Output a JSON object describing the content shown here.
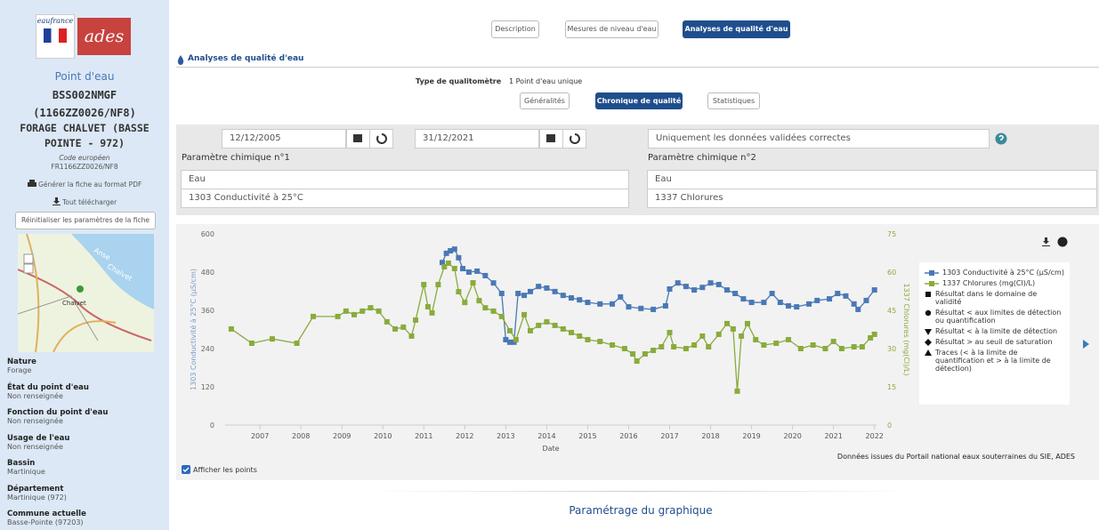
{
  "sidebar": {
    "logo_1": "eaufrance",
    "logo_2": "ades",
    "heading": "Point d'eau",
    "code_bss": "BSS002NMGF",
    "old_code": "(1166ZZ0026/NF8)",
    "name": "FORAGE CHALVET (BASSE POINTE - 972)",
    "eu_code_label": "Code européen",
    "eu_code": "FR1166ZZ0026/NF8",
    "pdf_link": "Générer la fiche au format PDF",
    "download_link": "Tout télécharger",
    "reset_button": "Réinitialiser les paramètres de la fiche",
    "map_labels": [
      "Anse",
      "Chalvet",
      "Chalvet"
    ],
    "fields": [
      {
        "label": "Nature",
        "value": "Forage"
      },
      {
        "label": "État du point d'eau",
        "value": "Non renseignée"
      },
      {
        "label": "Fonction du point d'eau",
        "value": "Non renseignée"
      },
      {
        "label": "Usage de l'eau",
        "value": "Non renseignée"
      },
      {
        "label": "Bassin",
        "value": "Martinique"
      },
      {
        "label": "Département",
        "value": "Martinique (972)"
      },
      {
        "label": "Commune actuelle",
        "value": "Basse-Pointe (97203)"
      }
    ]
  },
  "tabs": [
    "Description",
    "Mesures de niveau d'eau",
    "Analyses de qualité d'eau"
  ],
  "section_title": "Analyses de qualité d'eau",
  "qualitometre_label": "Type de qualitomètre",
  "qualitometre_value": "1 Point d'eau unique",
  "subtabs": [
    "Généralités",
    "Chronique de qualité",
    "Statistiques"
  ],
  "form": {
    "date_start": "12/12/2005",
    "date_end": "31/12/2021",
    "validation": "Uniquement les données validées correctes",
    "param1_label": "Paramètre chimique n°1",
    "param1_group": "Eau",
    "param1_value": "1303 Conductivité à 25°C",
    "param2_label": "Paramètre chimique n°2",
    "param2_group": "Eau",
    "param2_value": "1337 Chlorures"
  },
  "chart_data": {
    "type": "line",
    "x_label": "Date",
    "y_label": "1303 Conductivité à 25°C (µS/cm)",
    "y2_label": "1337 Chlorures (mg(Cl)/L)",
    "source": "Données issues du Portail national eaux souterraines du SIE, ADES",
    "xlim": [
      2006.15,
      2022.05
    ],
    "xticks": [
      2007,
      2008,
      2009,
      2010,
      2011,
      2012,
      2013,
      2014,
      2015,
      2016,
      2017,
      2018,
      2019,
      2020,
      2021,
      2022
    ],
    "ylim": [
      0,
      600
    ],
    "yticks": [
      0,
      120,
      240,
      360,
      480,
      600
    ],
    "y2lim": [
      0,
      75
    ],
    "y2ticks": [
      0,
      15,
      30,
      45,
      60,
      75
    ],
    "grid": false,
    "legend_position": "right",
    "legend_notes": [
      "Résultat dans le domaine de validité",
      "Résultat < aux limites de détection ou quantification",
      "Résultat < à la limite de détection",
      "Résultat > au seuil de saturation",
      "Traces (< à la limite de quantification et > à la limite de détection)"
    ],
    "show_points_label": "Afficher les points",
    "series": [
      {
        "name": "1303 Conductivité à 25°C (µS/cm)",
        "color": "#4a78b5",
        "axis": "y",
        "x": [
          2011.45,
          2011.55,
          2011.65,
          2011.75,
          2011.85,
          2011.95,
          2012.1,
          2012.3,
          2012.5,
          2012.7,
          2012.9,
          2013.0,
          2013.1,
          2013.2,
          2013.3,
          2013.45,
          2013.6,
          2013.8,
          2014.0,
          2014.2,
          2014.4,
          2014.6,
          2014.8,
          2015.0,
          2015.3,
          2015.6,
          2015.8,
          2016.0,
          2016.3,
          2016.6,
          2016.9,
          2017.0,
          2017.2,
          2017.4,
          2017.6,
          2017.8,
          2018.0,
          2018.2,
          2018.4,
          2018.6,
          2018.8,
          2019.0,
          2019.3,
          2019.5,
          2019.7,
          2019.9,
          2020.1,
          2020.4,
          2020.6,
          2020.9,
          2021.1,
          2021.3,
          2021.5,
          2021.6,
          2021.8,
          2022.0
        ],
        "values": [
          510,
          539,
          547,
          552,
          525,
          491,
          480,
          483,
          469,
          446,
          413,
          268,
          260,
          260,
          413,
          407,
          419,
          435,
          430,
          419,
          407,
          399,
          393,
          385,
          380,
          380,
          402,
          371,
          366,
          363,
          374,
          427,
          446,
          435,
          424,
          432,
          446,
          441,
          424,
          413,
          396,
          385,
          385,
          413,
          385,
          374,
          371,
          380,
          391,
          396,
          413,
          405,
          380,
          363,
          391,
          424
        ]
      },
      {
        "name": "1337 Chlorures (mg(Cl)/L)",
        "color": "#8aab3c",
        "axis": "y2",
        "x": [
          2006.3,
          2006.8,
          2007.3,
          2007.9,
          2008.3,
          2008.9,
          2009.1,
          2009.3,
          2009.5,
          2009.7,
          2009.9,
          2010.1,
          2010.3,
          2010.5,
          2010.7,
          2010.8,
          2011.0,
          2011.1,
          2011.2,
          2011.35,
          2011.5,
          2011.6,
          2011.75,
          2011.85,
          2012.0,
          2012.2,
          2012.35,
          2012.5,
          2012.7,
          2012.9,
          2013.1,
          2013.25,
          2013.45,
          2013.6,
          2013.8,
          2014.0,
          2014.2,
          2014.4,
          2014.6,
          2014.8,
          2015.0,
          2015.3,
          2015.6,
          2015.9,
          2016.1,
          2016.2,
          2016.4,
          2016.6,
          2016.8,
          2017.0,
          2017.1,
          2017.4,
          2017.6,
          2017.8,
          2017.95,
          2018.2,
          2018.4,
          2018.55,
          2018.65,
          2018.75,
          2018.9,
          2019.1,
          2019.3,
          2019.6,
          2019.9,
          2020.2,
          2020.5,
          2020.8,
          2021.0,
          2021.2,
          2021.5,
          2021.7,
          2021.9,
          2022.0
        ],
        "values": [
          37.7,
          32.1,
          33.8,
          32.1,
          42.6,
          42.6,
          44.7,
          43.3,
          44.7,
          46.0,
          44.7,
          40.5,
          37.7,
          38.4,
          34.9,
          41.2,
          55.1,
          46.4,
          44.0,
          55.1,
          62.1,
          63.5,
          61.4,
          52.3,
          48.1,
          55.8,
          48.8,
          46.0,
          44.7,
          42.6,
          37.0,
          33.5,
          43.3,
          37.0,
          39.1,
          40.5,
          39.1,
          37.7,
          36.3,
          34.9,
          33.5,
          32.8,
          31.4,
          30.0,
          27.9,
          25.1,
          27.9,
          29.3,
          30.7,
          36.3,
          30.7,
          30.0,
          31.4,
          34.9,
          30.7,
          35.6,
          39.8,
          37.7,
          13.3,
          34.9,
          39.8,
          33.5,
          31.4,
          32.1,
          33.5,
          30.0,
          31.4,
          30.0,
          32.8,
          30.0,
          30.7,
          30.7,
          34.2,
          35.6
        ]
      }
    ]
  },
  "footer_title": "Paramétrage du graphique"
}
